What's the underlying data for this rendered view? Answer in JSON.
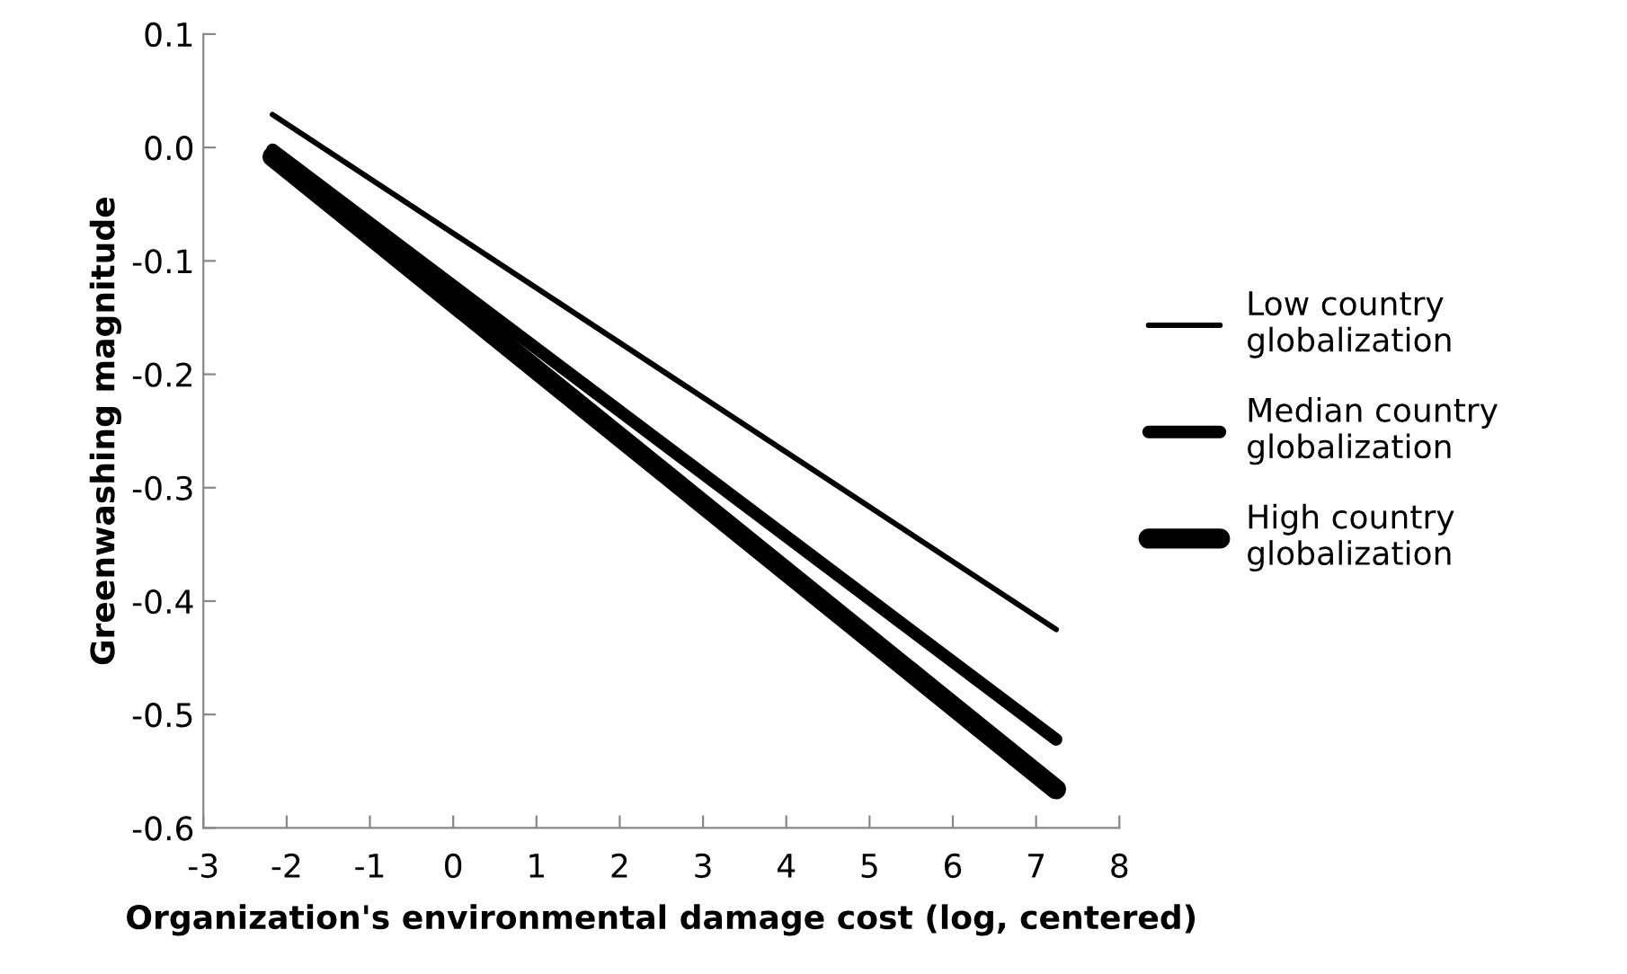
{
  "chart_data": {
    "type": "line",
    "xlabel": "Organization's environmental damage cost (log, centered)",
    "ylabel": "Greenwashing magnitude",
    "xlim": [
      -3,
      8
    ],
    "xticks": [
      -3,
      -2,
      -1,
      0,
      1,
      2,
      3,
      4,
      5,
      6,
      7,
      8
    ],
    "ylim": [
      -0.6,
      0.1
    ],
    "yticks": [
      {
        "value": -0.6,
        "label": "-0.6"
      },
      {
        "value": -0.5,
        "label": "-0.5"
      },
      {
        "value": -0.4,
        "label": "-0.4"
      },
      {
        "value": -0.3,
        "label": "-0.3"
      },
      {
        "value": -0.2,
        "label": "-0.2"
      },
      {
        "value": -0.1,
        "label": "-0.1"
      },
      {
        "value": 0,
        "label": "0.0"
      },
      {
        "value": 0.1,
        "label": "0.1"
      }
    ],
    "x": [
      -2.17,
      7.24
    ],
    "grid": false,
    "legend": "right",
    "marker": "none",
    "line_style": "solid",
    "series": [
      {
        "name": "Low country globalization",
        "color": "#000000",
        "values": [
          0.029,
          -0.425
        ]
      },
      {
        "name": "Median country globalization",
        "color": "#000000",
        "values": [
          -0.002,
          -0.522
        ]
      },
      {
        "name": "High country globalization",
        "color": "#000000",
        "values": [
          -0.008,
          -0.566
        ]
      }
    ]
  }
}
